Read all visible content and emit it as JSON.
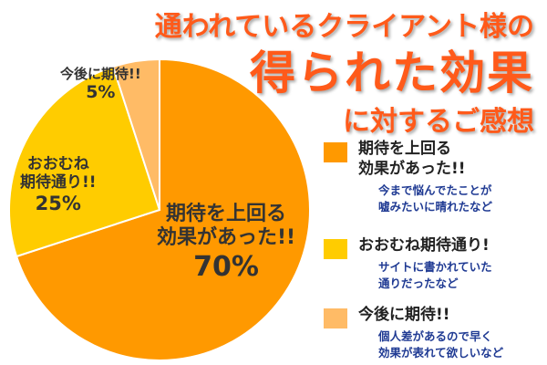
{
  "title": {
    "line1": "通われているクライアント様の",
    "line2": "得られた効果",
    "line3": "に対するご感想"
  },
  "colors": {
    "title": "#ff5a1a",
    "text": "#333333",
    "comment": "#1f3a93"
  },
  "chart_data": {
    "type": "pie",
    "title": "通われているクライアント様の得られた効果に対するご感想",
    "start_angle_deg": 0,
    "direction": "clockwise",
    "slices": [
      {
        "name": "期待を上回る効果があった!!",
        "value": 70,
        "label": "70%",
        "color": "#ff9900",
        "label_lines": [
          "期待を上回る",
          "効果があった!!"
        ]
      },
      {
        "name": "おおむね期待通り!!",
        "value": 25,
        "label": "25%",
        "color": "#ffcc00",
        "label_lines": [
          "おおむね",
          "期待通り!!"
        ]
      },
      {
        "name": "今後に期待!!",
        "value": 5,
        "label": "5%",
        "color": "#ffbb66",
        "label_lines": [
          "今後に期待!!"
        ]
      }
    ]
  },
  "legend": [
    {
      "label": "期待を上回る\n効果があった!!",
      "comment": "今まで悩んでたことが\n嘘みたいに晴れたなど",
      "color": "#ff9900"
    },
    {
      "label": "おおむね期待通り!",
      "comment": "サイトに書かれていた\n通りだったなど",
      "color": "#ffcc00"
    },
    {
      "label": "今後に期待!!",
      "comment": "個人差があるので早く\n効果が表れて欲しいなど",
      "color": "#ffbb66"
    }
  ]
}
